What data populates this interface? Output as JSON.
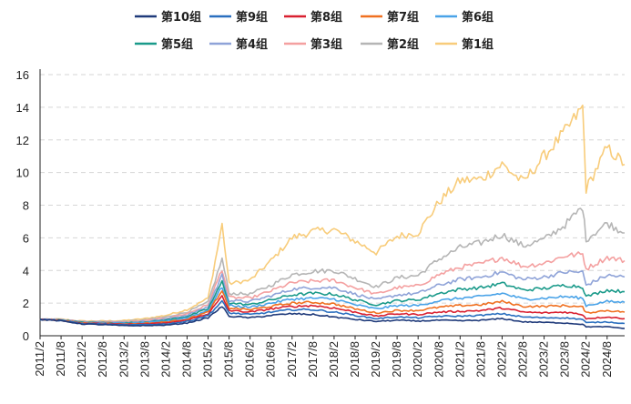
{
  "chart_data": {
    "type": "line",
    "title": "",
    "xlabel": "",
    "ylabel": "",
    "ylim": [
      0,
      16
    ],
    "yticks": [
      0,
      2,
      4,
      6,
      8,
      10,
      12,
      14,
      16
    ],
    "xlim": [
      "2011/2",
      "2025/1"
    ],
    "xticks": [
      "2011/2",
      "2011/8",
      "2012/2",
      "2012/8",
      "2013/2",
      "2013/8",
      "2014/2",
      "2014/8",
      "2015/2",
      "2015/8",
      "2016/2",
      "2016/8",
      "2017/2",
      "2017/8",
      "2018/2",
      "2018/8",
      "2019/2",
      "2019/8",
      "2020/2",
      "2020/8",
      "2021/2",
      "2021/8",
      "2022/2",
      "2022/8",
      "2023/2",
      "2023/8",
      "2024/2",
      "2024/8"
    ],
    "grid": true,
    "legend_position": "top",
    "x": [
      "2011/2",
      "2011/8",
      "2012/2",
      "2012/8",
      "2013/2",
      "2013/8",
      "2014/2",
      "2014/8",
      "2015/2",
      "2015/6",
      "2015/8",
      "2016/2",
      "2016/8",
      "2017/2",
      "2017/8",
      "2018/2",
      "2018/8",
      "2019/2",
      "2019/8",
      "2020/2",
      "2020/8",
      "2021/2",
      "2021/8",
      "2022/2",
      "2022/8",
      "2023/2",
      "2023/8",
      "2024/1",
      "2024/2",
      "2024/8",
      "2025/1"
    ],
    "series": [
      {
        "name": "第10组",
        "color": "#1f3a7a",
        "values": [
          1.0,
          0.92,
          0.72,
          0.68,
          0.62,
          0.62,
          0.65,
          0.78,
          1.1,
          1.8,
          1.2,
          1.1,
          1.25,
          1.35,
          1.3,
          1.15,
          1.0,
          0.88,
          0.95,
          0.9,
          0.95,
          0.92,
          0.95,
          1.05,
          0.85,
          0.82,
          0.78,
          0.7,
          0.55,
          0.55,
          0.45
        ]
      },
      {
        "name": "第9组",
        "color": "#2a6fbf",
        "values": [
          1.0,
          0.93,
          0.74,
          0.72,
          0.66,
          0.68,
          0.72,
          0.88,
          1.25,
          2.1,
          1.4,
          1.3,
          1.45,
          1.6,
          1.6,
          1.45,
          1.25,
          1.05,
          1.15,
          1.1,
          1.2,
          1.2,
          1.25,
          1.35,
          1.15,
          1.1,
          1.1,
          1.0,
          0.8,
          0.85,
          0.75
        ]
      },
      {
        "name": "第8组",
        "color": "#d92030",
        "values": [
          1.0,
          0.94,
          0.76,
          0.74,
          0.69,
          0.72,
          0.78,
          0.95,
          1.35,
          2.4,
          1.55,
          1.45,
          1.65,
          1.8,
          1.85,
          1.7,
          1.45,
          1.2,
          1.35,
          1.3,
          1.45,
          1.5,
          1.55,
          1.7,
          1.45,
          1.4,
          1.45,
          1.3,
          1.05,
          1.15,
          1.05
        ]
      },
      {
        "name": "第7组",
        "color": "#f07020",
        "values": [
          1.0,
          0.95,
          0.78,
          0.77,
          0.72,
          0.76,
          0.84,
          1.02,
          1.45,
          2.7,
          1.7,
          1.6,
          1.8,
          2.0,
          2.05,
          1.95,
          1.65,
          1.4,
          1.55,
          1.55,
          1.75,
          1.85,
          1.9,
          2.1,
          1.8,
          1.8,
          1.85,
          1.75,
          1.4,
          1.55,
          1.45
        ]
      },
      {
        "name": "第6组",
        "color": "#4aa3e8",
        "values": [
          1.0,
          0.96,
          0.8,
          0.79,
          0.75,
          0.8,
          0.9,
          1.1,
          1.55,
          3.0,
          1.85,
          1.75,
          2.0,
          2.25,
          2.3,
          2.25,
          1.9,
          1.65,
          1.85,
          1.85,
          2.15,
          2.3,
          2.4,
          2.6,
          2.25,
          2.3,
          2.4,
          2.3,
          1.85,
          2.1,
          2.05
        ]
      },
      {
        "name": "第5组",
        "color": "#1a9a8a",
        "values": [
          1.0,
          0.97,
          0.82,
          0.81,
          0.78,
          0.84,
          0.96,
          1.18,
          1.65,
          3.3,
          2.0,
          1.9,
          2.2,
          2.5,
          2.6,
          2.55,
          2.2,
          1.9,
          2.15,
          2.2,
          2.6,
          2.85,
          2.95,
          3.2,
          2.8,
          2.9,
          3.1,
          3.0,
          2.4,
          2.8,
          2.7
        ]
      },
      {
        "name": "第4组",
        "color": "#8fa3d8",
        "values": [
          1.0,
          0.98,
          0.84,
          0.83,
          0.81,
          0.88,
          1.02,
          1.26,
          1.78,
          3.7,
          2.15,
          2.1,
          2.45,
          2.85,
          2.95,
          2.95,
          2.55,
          2.2,
          2.5,
          2.6,
          3.1,
          3.45,
          3.6,
          3.9,
          3.45,
          3.6,
          3.9,
          3.9,
          3.1,
          3.7,
          3.6
        ]
      },
      {
        "name": "第3组",
        "color": "#f4a0a0",
        "values": [
          1.0,
          0.99,
          0.86,
          0.85,
          0.84,
          0.92,
          1.08,
          1.35,
          1.9,
          4.1,
          2.35,
          2.3,
          2.75,
          3.25,
          3.35,
          3.4,
          2.95,
          2.55,
          2.95,
          3.05,
          3.75,
          4.2,
          4.4,
          4.8,
          4.25,
          4.45,
          4.9,
          5.0,
          4.1,
          4.8,
          4.6
        ]
      },
      {
        "name": "第2组",
        "color": "#b5b5b5",
        "values": [
          1.0,
          1.0,
          0.88,
          0.87,
          0.88,
          0.97,
          1.15,
          1.45,
          2.05,
          4.7,
          2.6,
          2.55,
          3.1,
          3.75,
          3.95,
          4.0,
          3.5,
          3.0,
          3.55,
          3.7,
          4.7,
          5.4,
          5.7,
          6.2,
          5.5,
          5.9,
          6.8,
          7.9,
          5.9,
          6.9,
          6.3
        ]
      },
      {
        "name": "第1组",
        "color": "#f8cc7a",
        "values": [
          1.0,
          1.01,
          0.9,
          0.9,
          0.93,
          1.05,
          1.25,
          1.6,
          2.3,
          6.8,
          3.2,
          3.4,
          4.6,
          6.0,
          6.4,
          6.5,
          5.8,
          5.1,
          6.1,
          6.3,
          8.2,
          9.5,
          9.6,
          10.5,
          9.4,
          11.0,
          12.5,
          14.0,
          9.0,
          11.5,
          10.5
        ]
      }
    ]
  }
}
